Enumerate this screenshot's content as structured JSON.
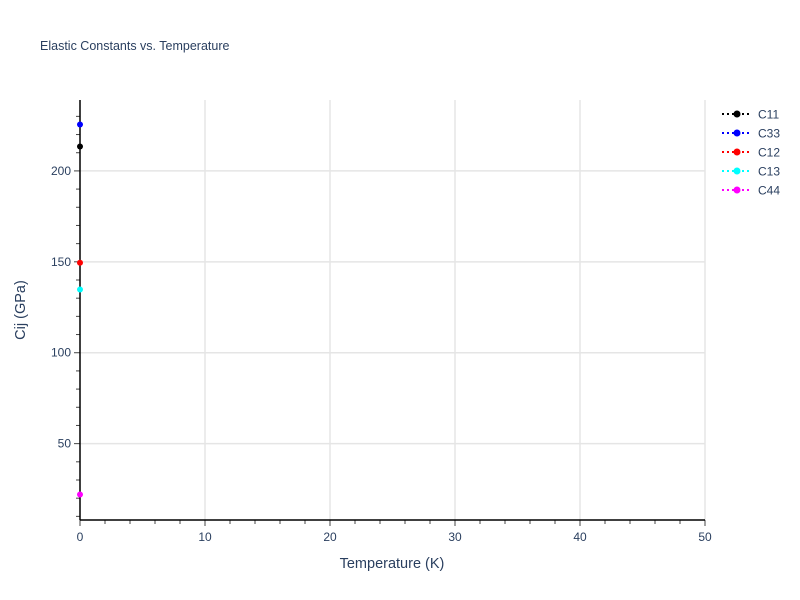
{
  "chart_data": {
    "type": "scatter",
    "title": "Elastic Constants vs. Temperature",
    "xlabel": "Temperature (K)",
    "ylabel": "Cij (GPa)",
    "xlim": [
      0,
      50
    ],
    "ylim": [
      8,
      239
    ],
    "xticks": [
      0,
      10,
      20,
      30,
      40,
      50
    ],
    "yticks": [
      50,
      100,
      150,
      200
    ],
    "grid": true,
    "legend_position": "top-right",
    "line_style": "dotted with markers",
    "series": [
      {
        "name": "C11",
        "color": "#000000",
        "x": [
          0
        ],
        "y": [
          213.4
        ]
      },
      {
        "name": "C33",
        "color": "#0000ff",
        "x": [
          0
        ],
        "y": [
          225.5
        ]
      },
      {
        "name": "C12",
        "color": "#ff0000",
        "x": [
          0
        ],
        "y": [
          149.5
        ]
      },
      {
        "name": "C13",
        "color": "#00ffff",
        "x": [
          0
        ],
        "y": [
          134.8
        ]
      },
      {
        "name": "C44",
        "color": "#ff00ff",
        "x": [
          0
        ],
        "y": [
          22
        ]
      }
    ]
  }
}
